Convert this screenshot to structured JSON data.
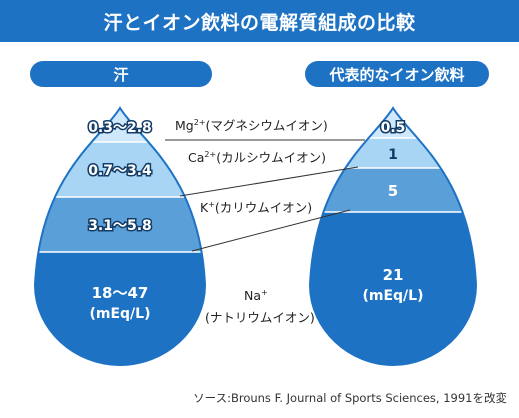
{
  "title": "汗とイオン飲料の電解質組成の比較",
  "left_label": "汗",
  "right_label": "代表的なイオン飲料",
  "ions": [
    {
      "name": "Mg",
      "charge": "2+",
      "desc": "(マグネシウムイオン)",
      "sweat": "0.3～2.8",
      "drink": "0.5"
    },
    {
      "name": "Ca",
      "charge": "2+",
      "desc": "(カルシウムイオン)",
      "sweat": "0.7～3.4",
      "drink": "1"
    },
    {
      "name": "K",
      "charge": "+",
      "desc": "(カリウムイオン)",
      "sweat": "3.1～5.8",
      "drink": "5"
    },
    {
      "name": "Na",
      "charge": "+",
      "desc": "(ナトリウムイオン)",
      "sweat": "18～47",
      "drink": "21"
    }
  ],
  "unit": "(mEq/L)",
  "source": "ソース:Brouns F. Journal of Sports Sciences, 1991を改変",
  "colors": {
    "banner": "#1d72c4",
    "band_top": "#cfe8fb",
    "band_ca": "#a9d5f5",
    "band_k": "#5b9fd8",
    "band_na": "#1d72c4",
    "outline": "#1d72c4"
  }
}
